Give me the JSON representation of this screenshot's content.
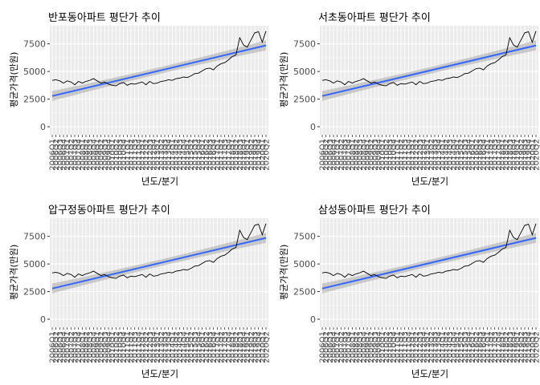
{
  "chart_data": [
    {
      "type": "line",
      "title": "반포동아파트 평단가 추이",
      "xlabel": "년도/분기",
      "ylabel": "평균가격(만원)",
      "yticks": [
        0,
        2500,
        5000,
        7500
      ],
      "ylim": [
        0,
        9000
      ],
      "grid": true,
      "categories": [
        "2006Q1",
        "2006Q2",
        "2006Q3",
        "2006Q4",
        "2007Q1",
        "2007Q2",
        "2007Q3",
        "2007Q4",
        "2008Q1",
        "2008Q2",
        "2008Q3",
        "2008Q4",
        "2009Q1",
        "2009Q2",
        "2009Q3",
        "2009Q4",
        "2010Q1",
        "2010Q2",
        "2010Q3",
        "2010Q4",
        "2011Q1",
        "2011Q2",
        "2011Q3",
        "2011Q4",
        "2012Q1",
        "2012Q2",
        "2012Q3",
        "2012Q4",
        "2013Q1",
        "2013Q2",
        "2013Q3",
        "2013Q4",
        "2014Q1",
        "2014Q2",
        "2014Q3",
        "2014Q4",
        "2015Q1",
        "2015Q2",
        "2015Q3",
        "2015Q4",
        "2016Q1",
        "2016Q2",
        "2016Q3",
        "2016Q4",
        "2017Q1",
        "2017Q2",
        "2017Q3",
        "2017Q4",
        "2018Q1",
        "2018Q2",
        "2018Q3",
        "2018Q4",
        "2019Q1",
        "2019Q2",
        "2019Q3",
        "2019Q4",
        "2020Q1",
        "2020Q2"
      ],
      "series": [
        {
          "values": [
            4200,
            4250,
            4150,
            3950,
            4150,
            4050,
            3800,
            4100,
            3950,
            4100,
            4200,
            4350,
            4150,
            3950,
            4050,
            3850,
            3750,
            3700,
            3900,
            4000,
            3750,
            3900,
            3850,
            3950,
            4050,
            3800,
            4100,
            3900,
            3950,
            4100,
            4150,
            4250,
            4200,
            4350,
            4400,
            4500,
            4450,
            4600,
            4800,
            4850,
            5050,
            5250,
            5300,
            5150,
            5500,
            5700,
            5800,
            6050,
            6350,
            6500,
            8050,
            7400,
            7200,
            7850,
            8500,
            8600,
            7650,
            8650
          ],
          "color": "#000000"
        },
        {
          "name": "",
          "values_start_end": [
            2780,
            7360
          ],
          "band": [
            300,
            450
          ],
          "color": "#3366FF",
          "band_color": "#999999"
        }
      ]
    },
    {
      "type": "line",
      "title": "서초동아파트 평단가 추이",
      "xlabel": "년도/분기",
      "ylabel": "평균가격(만원)",
      "yticks": [
        0,
        2500,
        5000,
        7500
      ],
      "ylim": [
        0,
        9000
      ],
      "grid": true,
      "categories": [
        "2006Q1",
        "2006Q2",
        "2006Q3",
        "2006Q4",
        "2007Q1",
        "2007Q2",
        "2007Q3",
        "2007Q4",
        "2008Q1",
        "2008Q2",
        "2008Q3",
        "2008Q4",
        "2009Q1",
        "2009Q2",
        "2009Q3",
        "2009Q4",
        "2010Q1",
        "2010Q2",
        "2010Q3",
        "2010Q4",
        "2011Q1",
        "2011Q2",
        "2011Q3",
        "2011Q4",
        "2012Q1",
        "2012Q2",
        "2012Q3",
        "2012Q4",
        "2013Q1",
        "2013Q2",
        "2013Q3",
        "2013Q4",
        "2014Q1",
        "2014Q2",
        "2014Q3",
        "2014Q4",
        "2015Q1",
        "2015Q2",
        "2015Q3",
        "2015Q4",
        "2016Q1",
        "2016Q2",
        "2016Q3",
        "2016Q4",
        "2017Q1",
        "2017Q2",
        "2017Q3",
        "2017Q4",
        "2018Q1",
        "2018Q2",
        "2018Q3",
        "2018Q4",
        "2019Q1",
        "2019Q2",
        "2019Q3",
        "2019Q4",
        "2020Q1",
        "2020Q2"
      ],
      "series": [
        {
          "values": [
            4200,
            4250,
            4150,
            3950,
            4150,
            4050,
            3800,
            4100,
            3950,
            4100,
            4200,
            4350,
            4150,
            3950,
            4050,
            3850,
            3750,
            3700,
            3900,
            4000,
            3750,
            3900,
            3850,
            3950,
            4050,
            3800,
            4100,
            3900,
            3950,
            4100,
            4150,
            4250,
            4200,
            4350,
            4400,
            4500,
            4450,
            4600,
            4800,
            4850,
            5050,
            5250,
            5300,
            5150,
            5500,
            5700,
            5800,
            6050,
            6350,
            6500,
            8050,
            7400,
            7200,
            7850,
            8500,
            8600,
            7650,
            8650
          ],
          "color": "#000000"
        },
        {
          "name": "",
          "values_start_end": [
            2780,
            7360
          ],
          "band": [
            300,
            450
          ],
          "color": "#3366FF",
          "band_color": "#999999"
        }
      ]
    },
    {
      "type": "line",
      "title": "압구정동아파트 평단가 추이",
      "xlabel": "년도/분기",
      "ylabel": "평균가격(만원)",
      "yticks": [
        0,
        2500,
        5000,
        7500
      ],
      "ylim": [
        0,
        9000
      ],
      "grid": true,
      "categories": [
        "2006Q1",
        "2006Q2",
        "2006Q3",
        "2006Q4",
        "2007Q1",
        "2007Q2",
        "2007Q3",
        "2007Q4",
        "2008Q1",
        "2008Q2",
        "2008Q3",
        "2008Q4",
        "2009Q1",
        "2009Q2",
        "2009Q3",
        "2009Q4",
        "2010Q1",
        "2010Q2",
        "2010Q3",
        "2010Q4",
        "2011Q1",
        "2011Q2",
        "2011Q3",
        "2011Q4",
        "2012Q1",
        "2012Q2",
        "2012Q3",
        "2012Q4",
        "2013Q1",
        "2013Q2",
        "2013Q3",
        "2013Q4",
        "2014Q1",
        "2014Q2",
        "2014Q3",
        "2014Q4",
        "2015Q1",
        "2015Q2",
        "2015Q3",
        "2015Q4",
        "2016Q1",
        "2016Q2",
        "2016Q3",
        "2016Q4",
        "2017Q1",
        "2017Q2",
        "2017Q3",
        "2017Q4",
        "2018Q1",
        "2018Q2",
        "2018Q3",
        "2018Q4",
        "2019Q1",
        "2019Q2",
        "2019Q3",
        "2019Q4",
        "2020Q1",
        "2020Q2"
      ],
      "series": [
        {
          "values": [
            4200,
            4250,
            4150,
            3950,
            4150,
            4050,
            3800,
            4100,
            3950,
            4100,
            4200,
            4350,
            4150,
            3950,
            4050,
            3850,
            3750,
            3700,
            3900,
            4000,
            3750,
            3900,
            3850,
            3950,
            4050,
            3800,
            4100,
            3900,
            3950,
            4100,
            4150,
            4250,
            4200,
            4350,
            4400,
            4500,
            4450,
            4600,
            4800,
            4850,
            5050,
            5250,
            5300,
            5150,
            5500,
            5700,
            5800,
            6050,
            6350,
            6500,
            8050,
            7400,
            7200,
            7850,
            8500,
            8600,
            7650,
            8650
          ],
          "color": "#000000"
        },
        {
          "name": "",
          "values_start_end": [
            2780,
            7360
          ],
          "band": [
            300,
            450
          ],
          "color": "#3366FF",
          "band_color": "#999999"
        }
      ]
    },
    {
      "type": "line",
      "title": "삼성동아파트 평단가 추이",
      "xlabel": "년도/분기",
      "ylabel": "평균가격(만원)",
      "yticks": [
        0,
        2500,
        5000,
        7500
      ],
      "ylim": [
        0,
        9000
      ],
      "grid": true,
      "categories": [
        "2006Q1",
        "2006Q2",
        "2006Q3",
        "2006Q4",
        "2007Q1",
        "2007Q2",
        "2007Q3",
        "2007Q4",
        "2008Q1",
        "2008Q2",
        "2008Q3",
        "2008Q4",
        "2009Q1",
        "2009Q2",
        "2009Q3",
        "2009Q4",
        "2010Q1",
        "2010Q2",
        "2010Q3",
        "2010Q4",
        "2011Q1",
        "2011Q2",
        "2011Q3",
        "2011Q4",
        "2012Q1",
        "2012Q2",
        "2012Q3",
        "2012Q4",
        "2013Q1",
        "2013Q2",
        "2013Q3",
        "2013Q4",
        "2014Q1",
        "2014Q2",
        "2014Q3",
        "2014Q4",
        "2015Q1",
        "2015Q2",
        "2015Q3",
        "2015Q4",
        "2016Q1",
        "2016Q2",
        "2016Q3",
        "2016Q4",
        "2017Q1",
        "2017Q2",
        "2017Q3",
        "2017Q4",
        "2018Q1",
        "2018Q2",
        "2018Q3",
        "2018Q4",
        "2019Q1",
        "2019Q2",
        "2019Q3",
        "2019Q4",
        "2020Q1",
        "2020Q2"
      ],
      "series": [
        {
          "values": [
            4200,
            4250,
            4150,
            3950,
            4150,
            4050,
            3800,
            4100,
            3950,
            4100,
            4200,
            4350,
            4150,
            3950,
            4050,
            3850,
            3750,
            3700,
            3900,
            4000,
            3750,
            3900,
            3850,
            3950,
            4050,
            3800,
            4100,
            3900,
            3950,
            4100,
            4150,
            4250,
            4200,
            4350,
            4400,
            4500,
            4450,
            4600,
            4800,
            4850,
            5050,
            5250,
            5300,
            5150,
            5500,
            5700,
            5800,
            6050,
            6350,
            6500,
            8050,
            7400,
            7200,
            7850,
            8500,
            8600,
            7650,
            8650
          ],
          "color": "#000000"
        },
        {
          "name": "",
          "values_start_end": [
            2780,
            7360
          ],
          "band": [
            300,
            450
          ],
          "color": "#3366FF",
          "band_color": "#999999"
        }
      ]
    }
  ]
}
